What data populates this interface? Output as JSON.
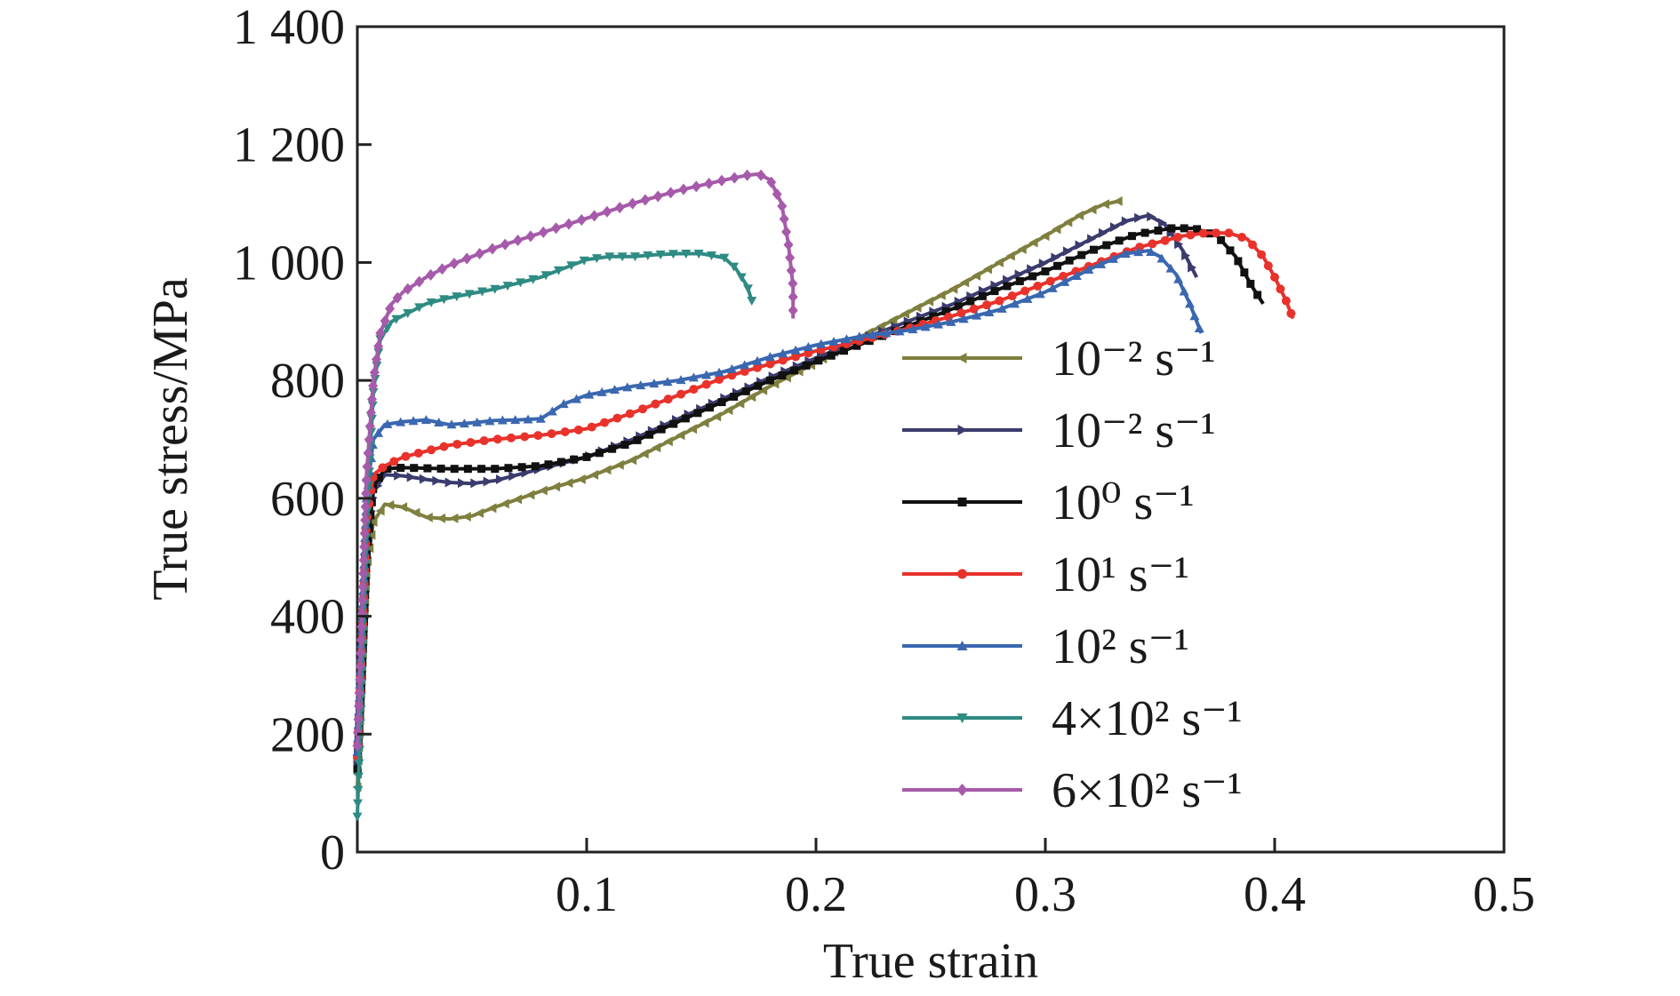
{
  "chart_data": {
    "type": "line",
    "xlabel": "True strain",
    "ylabel": "True stress/MPa",
    "xlim": [
      0,
      0.5
    ],
    "ylim": [
      0,
      1400
    ],
    "x_ticks": [
      {
        "value": 0.1,
        "label": "0.1"
      },
      {
        "value": 0.2,
        "label": "0.2"
      },
      {
        "value": 0.3,
        "label": "0.3"
      },
      {
        "value": 0.4,
        "label": "0.4"
      },
      {
        "value": 0.5,
        "label": "0.5"
      }
    ],
    "y_ticks": [
      {
        "value": 0,
        "label": "0"
      },
      {
        "value": 200,
        "label": "200"
      },
      {
        "value": 400,
        "label": "400"
      },
      {
        "value": 600,
        "label": "600"
      },
      {
        "value": 800,
        "label": "800"
      },
      {
        "value": 1000,
        "label": "1 000"
      },
      {
        "value": 1200,
        "label": "1 200"
      },
      {
        "value": 1400,
        "label": "1 400"
      }
    ],
    "grid": false,
    "legend_position": "right",
    "series": [
      {
        "name": "10⁻² s⁻¹",
        "color": "#7f7f3f",
        "marker": "triangle-left",
        "points": [
          [
            0.0,
            110
          ],
          [
            0.002,
            300
          ],
          [
            0.004,
            480
          ],
          [
            0.007,
            560
          ],
          [
            0.012,
            590
          ],
          [
            0.02,
            585
          ],
          [
            0.03,
            568
          ],
          [
            0.04,
            565
          ],
          [
            0.05,
            570
          ],
          [
            0.06,
            585
          ],
          [
            0.08,
            612
          ],
          [
            0.1,
            635
          ],
          [
            0.12,
            665
          ],
          [
            0.14,
            705
          ],
          [
            0.16,
            745
          ],
          [
            0.18,
            790
          ],
          [
            0.2,
            830
          ],
          [
            0.22,
            875
          ],
          [
            0.24,
            915
          ],
          [
            0.26,
            955
          ],
          [
            0.28,
            1000
          ],
          [
            0.3,
            1045
          ],
          [
            0.315,
            1080
          ],
          [
            0.325,
            1098
          ],
          [
            0.333,
            1105
          ]
        ]
      },
      {
        "name": "10⁻² s⁻¹",
        "color": "#3b3b6e",
        "marker": "triangle-right",
        "points": [
          [
            0.0,
            150
          ],
          [
            0.002,
            330
          ],
          [
            0.004,
            520
          ],
          [
            0.007,
            610
          ],
          [
            0.012,
            640
          ],
          [
            0.02,
            638
          ],
          [
            0.03,
            632
          ],
          [
            0.04,
            627
          ],
          [
            0.05,
            625
          ],
          [
            0.06,
            630
          ],
          [
            0.08,
            650
          ],
          [
            0.1,
            670
          ],
          [
            0.12,
            700
          ],
          [
            0.14,
            735
          ],
          [
            0.16,
            770
          ],
          [
            0.18,
            805
          ],
          [
            0.2,
            838
          ],
          [
            0.22,
            870
          ],
          [
            0.24,
            900
          ],
          [
            0.26,
            930
          ],
          [
            0.28,
            965
          ],
          [
            0.3,
            1000
          ],
          [
            0.32,
            1040
          ],
          [
            0.335,
            1070
          ],
          [
            0.345,
            1080
          ],
          [
            0.352,
            1065
          ],
          [
            0.36,
            1020
          ],
          [
            0.366,
            975
          ]
        ]
      },
      {
        "name": "10⁰ s⁻¹",
        "color": "#111111",
        "marker": "square",
        "points": [
          [
            0.0,
            140
          ],
          [
            0.002,
            300
          ],
          [
            0.004,
            500
          ],
          [
            0.007,
            620
          ],
          [
            0.012,
            650
          ],
          [
            0.02,
            652
          ],
          [
            0.04,
            650
          ],
          [
            0.06,
            650
          ],
          [
            0.08,
            655
          ],
          [
            0.1,
            670
          ],
          [
            0.12,
            695
          ],
          [
            0.14,
            730
          ],
          [
            0.16,
            765
          ],
          [
            0.18,
            800
          ],
          [
            0.2,
            832
          ],
          [
            0.22,
            862
          ],
          [
            0.24,
            892
          ],
          [
            0.26,
            922
          ],
          [
            0.28,
            955
          ],
          [
            0.3,
            985
          ],
          [
            0.32,
            1020
          ],
          [
            0.34,
            1048
          ],
          [
            0.355,
            1058
          ],
          [
            0.365,
            1058
          ],
          [
            0.375,
            1045
          ],
          [
            0.383,
            1010
          ],
          [
            0.39,
            960
          ],
          [
            0.395,
            930
          ]
        ]
      },
      {
        "name": "10¹ s⁻¹",
        "color": "#e8322b",
        "marker": "circle",
        "points": [
          [
            0.0,
            160
          ],
          [
            0.002,
            350
          ],
          [
            0.004,
            560
          ],
          [
            0.007,
            640
          ],
          [
            0.012,
            655
          ],
          [
            0.02,
            670
          ],
          [
            0.03,
            680
          ],
          [
            0.04,
            690
          ],
          [
            0.06,
            700
          ],
          [
            0.08,
            707
          ],
          [
            0.1,
            718
          ],
          [
            0.12,
            745
          ],
          [
            0.14,
            775
          ],
          [
            0.16,
            805
          ],
          [
            0.18,
            828
          ],
          [
            0.2,
            850
          ],
          [
            0.22,
            868
          ],
          [
            0.24,
            888
          ],
          [
            0.26,
            910
          ],
          [
            0.28,
            935
          ],
          [
            0.3,
            965
          ],
          [
            0.32,
            995
          ],
          [
            0.34,
            1025
          ],
          [
            0.36,
            1045
          ],
          [
            0.37,
            1050
          ],
          [
            0.38,
            1050
          ],
          [
            0.388,
            1040
          ],
          [
            0.395,
            1010
          ],
          [
            0.4,
            975
          ],
          [
            0.405,
            935
          ],
          [
            0.408,
            905
          ]
        ]
      },
      {
        "name": "10² s⁻¹",
        "color": "#3a67b0",
        "marker": "triangle-up",
        "points": [
          [
            0.0,
            170
          ],
          [
            0.002,
            380
          ],
          [
            0.004,
            600
          ],
          [
            0.007,
            700
          ],
          [
            0.012,
            725
          ],
          [
            0.02,
            730
          ],
          [
            0.03,
            733
          ],
          [
            0.04,
            725
          ],
          [
            0.05,
            728
          ],
          [
            0.06,
            732
          ],
          [
            0.07,
            733
          ],
          [
            0.08,
            735
          ],
          [
            0.09,
            760
          ],
          [
            0.1,
            775
          ],
          [
            0.12,
            790
          ],
          [
            0.14,
            800
          ],
          [
            0.16,
            815
          ],
          [
            0.18,
            840
          ],
          [
            0.2,
            860
          ],
          [
            0.22,
            875
          ],
          [
            0.24,
            885
          ],
          [
            0.26,
            900
          ],
          [
            0.28,
            920
          ],
          [
            0.3,
            950
          ],
          [
            0.32,
            990
          ],
          [
            0.335,
            1015
          ],
          [
            0.345,
            1020
          ],
          [
            0.35,
            1010
          ],
          [
            0.357,
            980
          ],
          [
            0.363,
            930
          ],
          [
            0.368,
            880
          ]
        ]
      },
      {
        "name": "4×10² s⁻¹",
        "color": "#2e8b83",
        "marker": "triangle-down",
        "points": [
          [
            0.0,
            60
          ],
          [
            0.002,
            300
          ],
          [
            0.004,
            560
          ],
          [
            0.007,
            780
          ],
          [
            0.01,
            870
          ],
          [
            0.015,
            900
          ],
          [
            0.02,
            910
          ],
          [
            0.03,
            930
          ],
          [
            0.04,
            940
          ],
          [
            0.06,
            955
          ],
          [
            0.08,
            975
          ],
          [
            0.09,
            990
          ],
          [
            0.1,
            1005
          ],
          [
            0.11,
            1010
          ],
          [
            0.12,
            1010
          ],
          [
            0.13,
            1013
          ],
          [
            0.14,
            1015
          ],
          [
            0.15,
            1015
          ],
          [
            0.16,
            1008
          ],
          [
            0.165,
            990
          ],
          [
            0.17,
            960
          ],
          [
            0.172,
            935
          ]
        ]
      },
      {
        "name": "6×10² s⁻¹",
        "color": "#a65aaa",
        "marker": "diamond",
        "points": [
          [
            0.0,
            180
          ],
          [
            0.002,
            400
          ],
          [
            0.004,
            640
          ],
          [
            0.007,
            800
          ],
          [
            0.01,
            880
          ],
          [
            0.015,
            930
          ],
          [
            0.02,
            950
          ],
          [
            0.03,
            975
          ],
          [
            0.04,
            995
          ],
          [
            0.06,
            1025
          ],
          [
            0.08,
            1050
          ],
          [
            0.1,
            1075
          ],
          [
            0.12,
            1100
          ],
          [
            0.14,
            1122
          ],
          [
            0.16,
            1140
          ],
          [
            0.17,
            1148
          ],
          [
            0.175,
            1150
          ],
          [
            0.18,
            1140
          ],
          [
            0.185,
            1100
          ],
          [
            0.188,
            1030
          ],
          [
            0.19,
            960
          ],
          [
            0.19,
            905
          ]
        ]
      }
    ]
  }
}
